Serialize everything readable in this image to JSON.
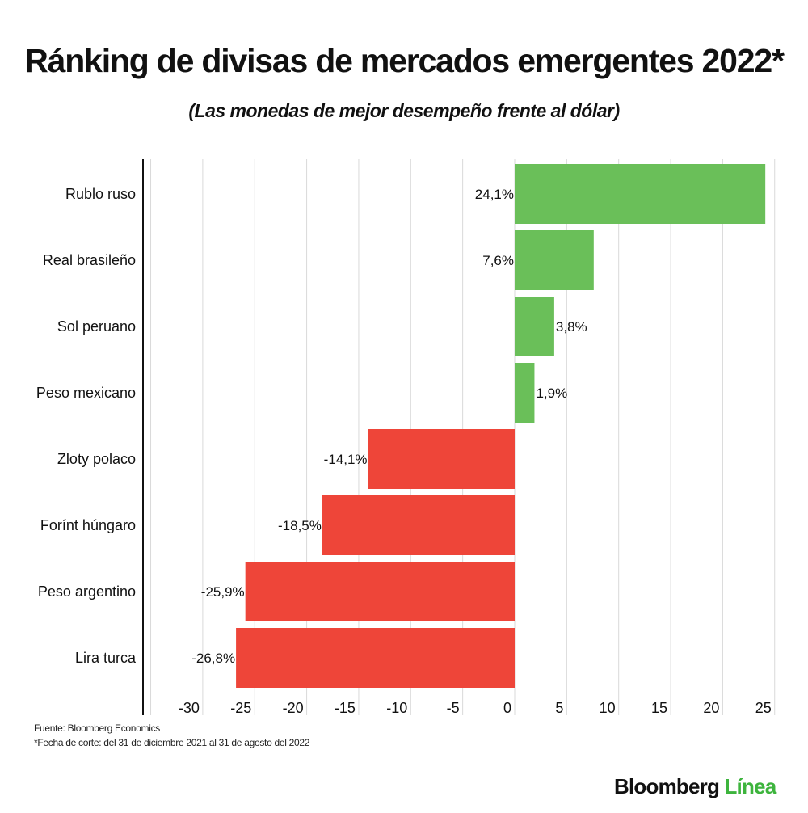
{
  "title": "Ránking de divisas de mercados emergentes 2022*",
  "subtitle": "(Las monedas de mejor desempeño frente al dólar)",
  "chart_data": {
    "type": "bar",
    "orientation": "horizontal",
    "categories": [
      "Rublo ruso",
      "Real brasileño",
      "Sol peruano",
      "Peso mexicano",
      "Zloty polaco",
      "Forínt húngaro",
      "Peso argentino",
      "Lira turca"
    ],
    "values": [
      24.1,
      7.6,
      3.8,
      1.9,
      -14.1,
      -18.5,
      -25.9,
      -26.8
    ],
    "data_labels": [
      "24,1%",
      "7,6%",
      "3,8%",
      "1,9%",
      "-14,1%",
      "-18,5%",
      "-25,9%",
      "-26,8%"
    ],
    "xlim": [
      -35,
      25
    ],
    "xticks": [
      -30,
      -25,
      -20,
      -15,
      -10,
      -5,
      0,
      5,
      10,
      15,
      20,
      25
    ],
    "grid": true,
    "colors": {
      "positive": "#6abf59",
      "negative": "#ee4539",
      "grid": "#d9d9d9",
      "axis": "#111111"
    }
  },
  "footer": {
    "source": "Fuente: Bloomberg Economics",
    "note": "*Fecha de corte: del 31 de diciembre 2021 al 31 de agosto del 2022"
  },
  "logo": {
    "part1": "Bloomberg",
    "part2": "Línea"
  }
}
